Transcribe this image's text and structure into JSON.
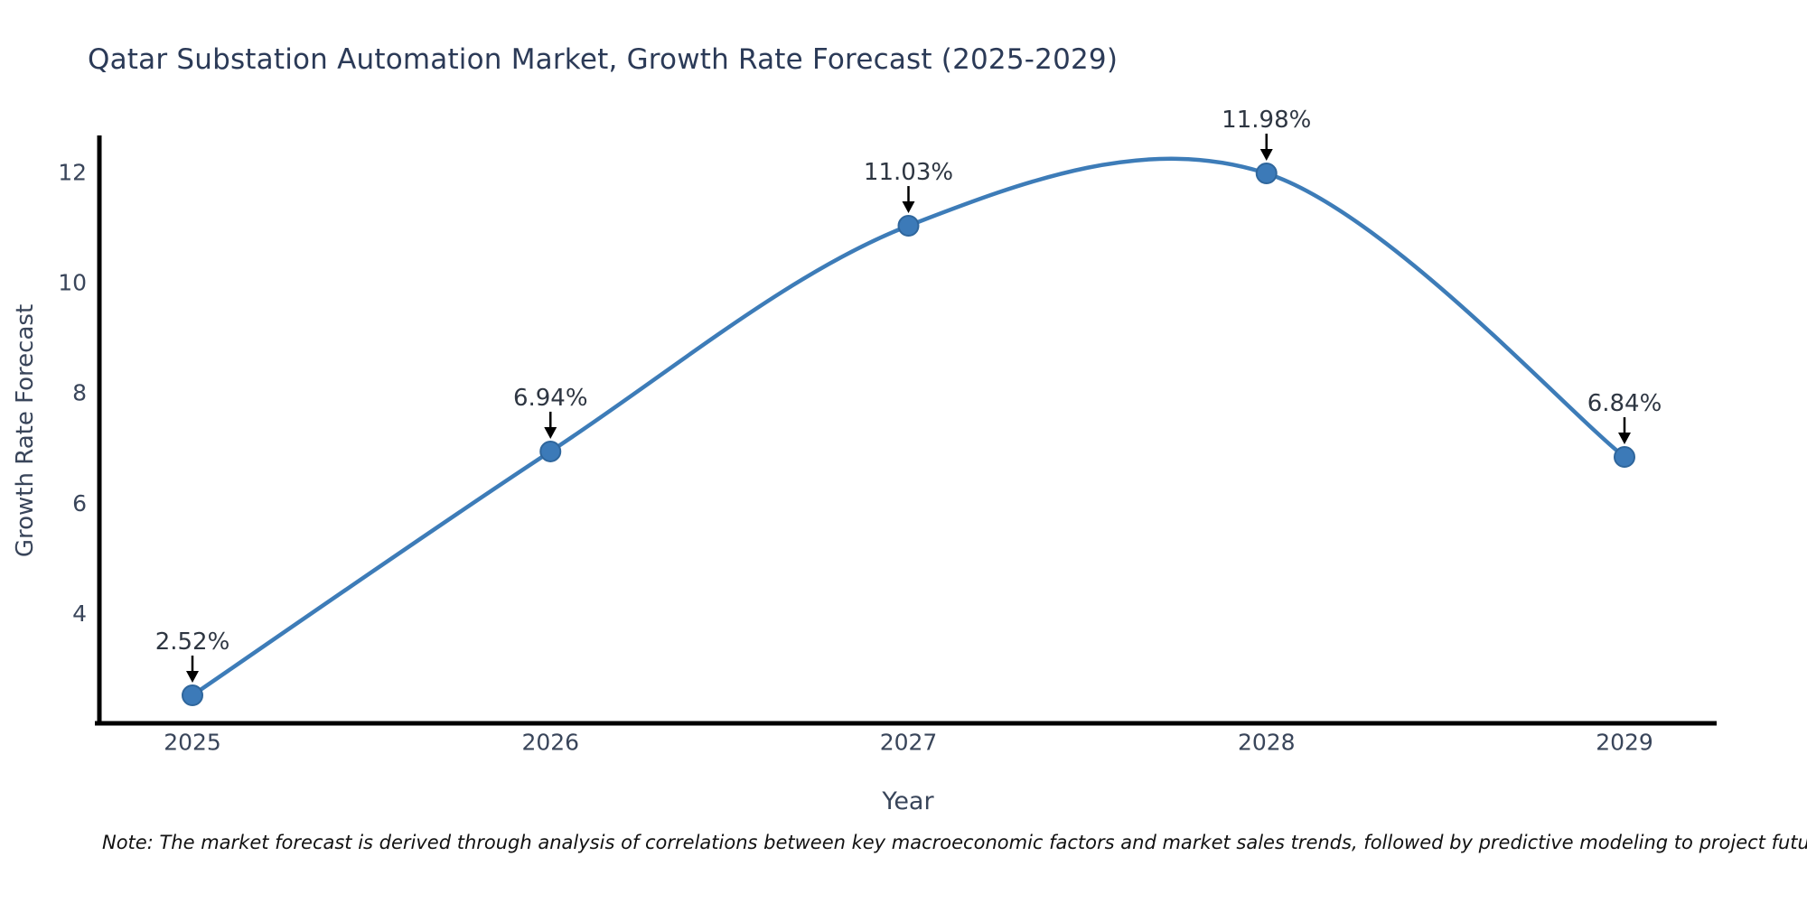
{
  "chart_data": {
    "type": "line",
    "title": "Qatar Substation Automation Market, Growth Rate Forecast (2025-2029)",
    "xlabel": "Year",
    "ylabel": "Growth Rate Forecast",
    "categories": [
      2025,
      2026,
      2027,
      2028,
      2029
    ],
    "series": [
      {
        "name": "Growth Rate Forecast",
        "values": [
          2.52,
          6.94,
          11.03,
          11.98,
          6.84
        ]
      }
    ],
    "point_labels": [
      "2.52%",
      "6.94%",
      "11.03%",
      "11.98%",
      "6.84%"
    ],
    "yticks": [
      4,
      6,
      8,
      10,
      12
    ],
    "ylim": [
      2.1,
      12.6
    ],
    "grid": false,
    "legend_position": "none",
    "curve": "spline",
    "colors": {
      "line": "#3d7cb8",
      "marker_fill": "#3c7ab8",
      "marker_edge": "#2f669c",
      "axis": "#000000",
      "title_text": "#2b3a57",
      "tick_text": "#39455a",
      "annotation_text": "#2e3642",
      "arrow": "#000000"
    }
  },
  "footnote": "Note: The market forecast is derived through analysis of correlations between key macroeconomic factors and market sales trends, followed by predictive modeling to project future sales"
}
